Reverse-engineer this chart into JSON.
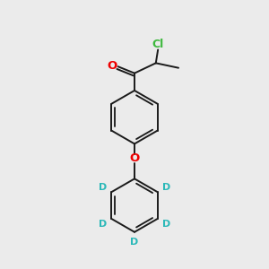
{
  "bg_color": "#ebebeb",
  "bond_color": "#1a1a1a",
  "cl_color": "#3db83d",
  "o_color": "#ee0000",
  "d_color": "#2ab8b8",
  "lw": 1.4,
  "figsize": [
    3.0,
    3.0
  ],
  "dpi": 100,
  "xlim": [
    0,
    10
  ],
  "ylim": [
    0,
    10
  ]
}
